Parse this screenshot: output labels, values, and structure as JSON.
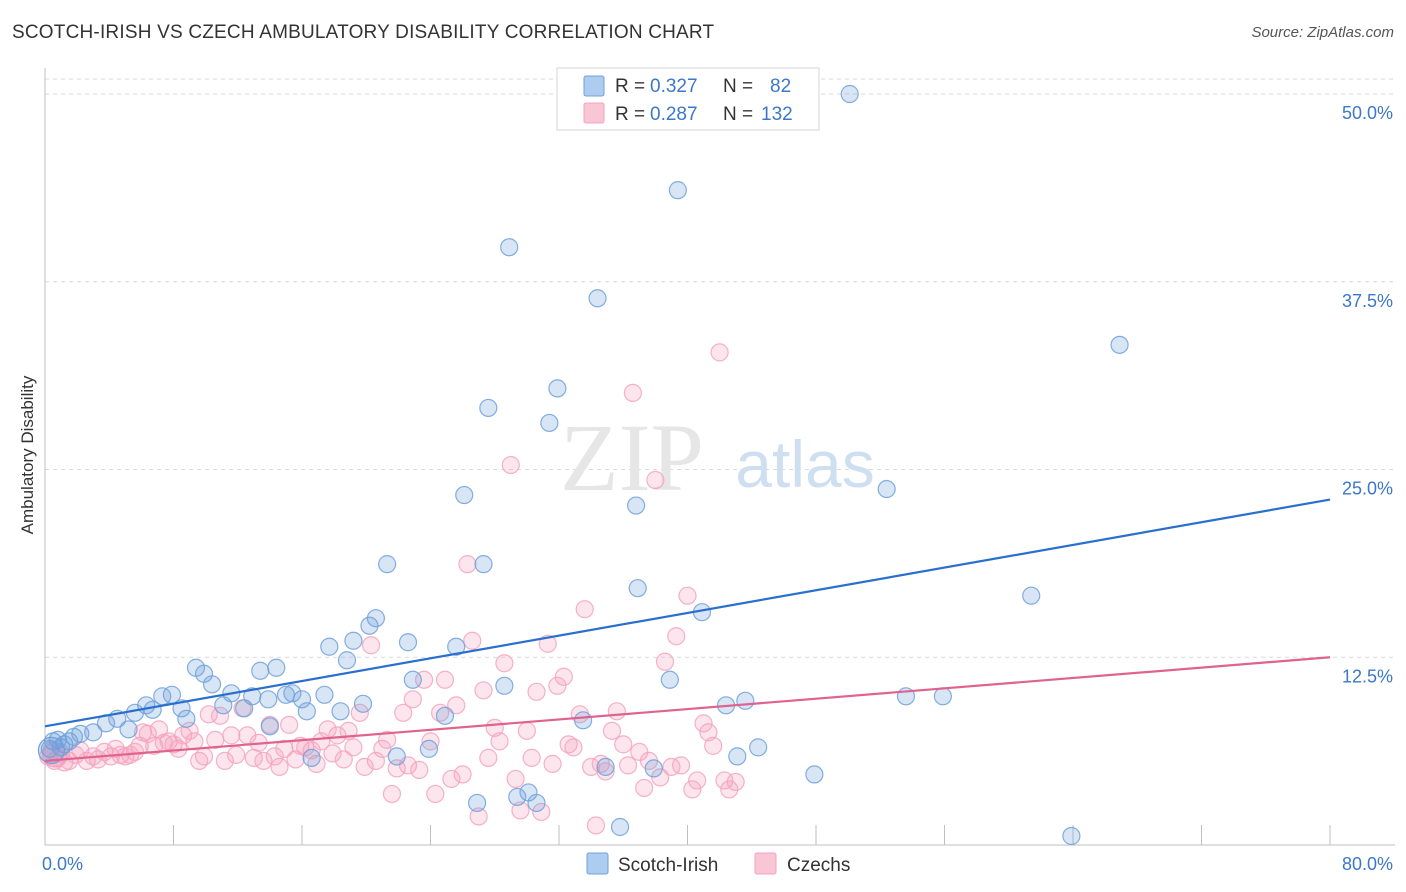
{
  "title": "SCOTCH-IRISH VS CZECH AMBULATORY DISABILITY CORRELATION CHART",
  "source": "Source: ZipAtlas.com",
  "watermark": {
    "zip": "ZIP",
    "atlas": "atlas"
  },
  "colors": {
    "blue": "#6fa0dc",
    "blue_line": "#2a6fcf",
    "pink": "#f4a3bd",
    "pink_line": "#e0628f",
    "axis_text": "#3b78c9",
    "grid": "#d9d9d9"
  },
  "legend": {
    "rows": [
      {
        "r_label": "R =",
        "r_value": "0.327",
        "n_label": "N =",
        "n_value": "82"
      },
      {
        "r_label": "R =",
        "r_value": "0.287",
        "n_label": "N =",
        "n_value": "132"
      }
    ]
  },
  "bottom_legend": [
    "Scotch-Irish",
    "Czechs"
  ],
  "chart_data": {
    "type": "scatter",
    "title": "SCOTCH-IRISH VS CZECH AMBULATORY DISABILITY CORRELATION CHART",
    "xlabel": "",
    "ylabel": "Ambulatory Disability",
    "xlim": [
      0,
      80
    ],
    "ylim": [
      0,
      51
    ],
    "x_tick_labels": [
      "0.0%",
      "80.0%"
    ],
    "y_ticks": [
      12.5,
      25.0,
      37.5,
      50.0
    ],
    "y_tick_labels": [
      "12.5%",
      "25.0%",
      "37.5%",
      "50.0%"
    ],
    "grid": "horizontal dashed",
    "legend_position": "top-center",
    "series": [
      {
        "name": "Scotch-Irish",
        "r": 0.327,
        "n": 82,
        "trend": {
          "x": [
            0,
            80
          ],
          "y": [
            7.9,
            23.0
          ]
        },
        "points": [
          [
            0.3,
            6.4
          ],
          [
            0.5,
            6.9
          ],
          [
            0.8,
            7.0
          ],
          [
            1.0,
            6.5
          ],
          [
            1.2,
            6.7
          ],
          [
            1.5,
            6.9
          ],
          [
            1.8,
            7.2
          ],
          [
            2.2,
            7.4
          ],
          [
            3.0,
            7.5
          ],
          [
            3.8,
            8.1
          ],
          [
            4.5,
            8.4
          ],
          [
            5.2,
            7.7
          ],
          [
            5.6,
            8.8
          ],
          [
            6.3,
            9.3
          ],
          [
            6.7,
            9.0
          ],
          [
            7.3,
            9.9
          ],
          [
            7.9,
            10.0
          ],
          [
            8.5,
            9.1
          ],
          [
            8.8,
            8.4
          ],
          [
            9.4,
            11.8
          ],
          [
            9.9,
            11.4
          ],
          [
            10.4,
            10.7
          ],
          [
            11.1,
            9.3
          ],
          [
            11.6,
            10.1
          ],
          [
            12.4,
            9.1
          ],
          [
            12.9,
            9.9
          ],
          [
            13.4,
            11.6
          ],
          [
            13.9,
            9.7
          ],
          [
            14.0,
            7.9
          ],
          [
            14.4,
            11.8
          ],
          [
            15.0,
            10.0
          ],
          [
            15.4,
            10.1
          ],
          [
            16.0,
            9.7
          ],
          [
            16.3,
            8.9
          ],
          [
            16.6,
            5.8
          ],
          [
            17.4,
            10.0
          ],
          [
            17.7,
            13.2
          ],
          [
            18.4,
            8.9
          ],
          [
            18.8,
            12.3
          ],
          [
            19.2,
            13.6
          ],
          [
            19.8,
            9.4
          ],
          [
            20.2,
            14.6
          ],
          [
            20.6,
            15.1
          ],
          [
            21.3,
            18.7
          ],
          [
            21.9,
            5.9
          ],
          [
            22.6,
            13.5
          ],
          [
            22.9,
            11.0
          ],
          [
            23.9,
            6.4
          ],
          [
            24.9,
            8.6
          ],
          [
            25.6,
            13.2
          ],
          [
            26.1,
            23.3
          ],
          [
            26.9,
            2.8
          ],
          [
            27.3,
            18.7
          ],
          [
            27.6,
            29.1
          ],
          [
            28.6,
            10.6
          ],
          [
            28.9,
            39.8
          ],
          [
            29.4,
            3.2
          ],
          [
            30.1,
            3.5
          ],
          [
            30.6,
            2.8
          ],
          [
            31.4,
            28.1
          ],
          [
            31.9,
            30.4
          ],
          [
            33.5,
            8.3
          ],
          [
            34.4,
            36.4
          ],
          [
            34.9,
            5.2
          ],
          [
            35.8,
            1.2
          ],
          [
            36.8,
            22.6
          ],
          [
            36.9,
            17.1
          ],
          [
            37.9,
            5.1
          ],
          [
            38.9,
            11.0
          ],
          [
            39.4,
            43.6
          ],
          [
            40.9,
            15.5
          ],
          [
            42.4,
            9.3
          ],
          [
            43.1,
            5.9
          ],
          [
            43.6,
            9.6
          ],
          [
            44.4,
            6.5
          ],
          [
            47.9,
            4.7
          ],
          [
            50.1,
            50.0
          ],
          [
            52.4,
            23.7
          ],
          [
            53.6,
            9.9
          ],
          [
            55.9,
            9.9
          ],
          [
            61.4,
            16.6
          ],
          [
            63.9,
            0.6
          ],
          [
            66.9,
            33.3
          ]
        ]
      },
      {
        "name": "Czechs",
        "r": 0.287,
        "n": 132,
        "trend": {
          "x": [
            0,
            80
          ],
          "y": [
            5.6,
            12.5
          ]
        },
        "points": [
          [
            0.2,
            5.9
          ],
          [
            0.4,
            6.3
          ],
          [
            0.6,
            5.6
          ],
          [
            0.8,
            5.8
          ],
          [
            1.0,
            6.1
          ],
          [
            1.2,
            5.5
          ],
          [
            1.5,
            5.6
          ],
          [
            1.9,
            6.0
          ],
          [
            2.2,
            6.3
          ],
          [
            2.6,
            5.6
          ],
          [
            3.0,
            5.9
          ],
          [
            3.3,
            5.7
          ],
          [
            3.7,
            6.2
          ],
          [
            4.1,
            5.9
          ],
          [
            4.4,
            6.4
          ],
          [
            4.7,
            6.0
          ],
          [
            5.0,
            5.9
          ],
          [
            5.3,
            6.0
          ],
          [
            5.6,
            6.2
          ],
          [
            5.9,
            6.6
          ],
          [
            6.1,
            7.5
          ],
          [
            6.4,
            7.4
          ],
          [
            6.8,
            6.6
          ],
          [
            7.1,
            7.7
          ],
          [
            7.4,
            6.8
          ],
          [
            7.7,
            6.9
          ],
          [
            8.0,
            6.7
          ],
          [
            8.3,
            6.4
          ],
          [
            8.6,
            7.3
          ],
          [
            9.0,
            7.6
          ],
          [
            9.3,
            6.9
          ],
          [
            9.6,
            5.6
          ],
          [
            9.9,
            5.9
          ],
          [
            10.2,
            8.7
          ],
          [
            10.6,
            7.0
          ],
          [
            10.9,
            8.6
          ],
          [
            11.2,
            5.6
          ],
          [
            11.6,
            7.3
          ],
          [
            11.9,
            6.0
          ],
          [
            12.3,
            9.1
          ],
          [
            12.6,
            7.3
          ],
          [
            13.0,
            5.8
          ],
          [
            13.3,
            6.8
          ],
          [
            13.6,
            5.6
          ],
          [
            14.0,
            8.0
          ],
          [
            14.3,
            5.9
          ],
          [
            14.6,
            5.2
          ],
          [
            14.9,
            6.4
          ],
          [
            15.2,
            8.0
          ],
          [
            15.6,
            5.7
          ],
          [
            15.9,
            6.6
          ],
          [
            16.2,
            6.5
          ],
          [
            16.6,
            6.3
          ],
          [
            16.9,
            5.4
          ],
          [
            17.2,
            6.9
          ],
          [
            17.6,
            7.7
          ],
          [
            17.9,
            6.1
          ],
          [
            18.2,
            7.3
          ],
          [
            18.6,
            5.7
          ],
          [
            18.9,
            7.6
          ],
          [
            19.2,
            6.5
          ],
          [
            19.6,
            8.8
          ],
          [
            19.9,
            5.2
          ],
          [
            20.3,
            13.3
          ],
          [
            20.6,
            5.6
          ],
          [
            21.0,
            6.4
          ],
          [
            21.3,
            7.0
          ],
          [
            21.6,
            3.4
          ],
          [
            21.9,
            5.1
          ],
          [
            22.3,
            8.8
          ],
          [
            22.6,
            5.3
          ],
          [
            22.9,
            9.7
          ],
          [
            23.3,
            5.0
          ],
          [
            23.6,
            11.0
          ],
          [
            24.0,
            6.9
          ],
          [
            24.3,
            3.4
          ],
          [
            24.6,
            8.8
          ],
          [
            24.9,
            11.0
          ],
          [
            25.3,
            4.4
          ],
          [
            25.6,
            9.3
          ],
          [
            26.0,
            4.7
          ],
          [
            26.3,
            18.7
          ],
          [
            26.6,
            13.6
          ],
          [
            27.0,
            1.9
          ],
          [
            27.3,
            10.3
          ],
          [
            27.6,
            5.8
          ],
          [
            28.0,
            7.8
          ],
          [
            28.3,
            6.9
          ],
          [
            28.6,
            12.1
          ],
          [
            29.0,
            25.3
          ],
          [
            29.3,
            4.4
          ],
          [
            29.6,
            2.3
          ],
          [
            30.0,
            7.6
          ],
          [
            30.3,
            5.8
          ],
          [
            30.6,
            10.2
          ],
          [
            30.9,
            2.2
          ],
          [
            31.3,
            13.4
          ],
          [
            31.6,
            5.4
          ],
          [
            31.9,
            10.6
          ],
          [
            32.3,
            11.2
          ],
          [
            32.6,
            6.7
          ],
          [
            32.9,
            6.5
          ],
          [
            33.3,
            8.7
          ],
          [
            33.6,
            15.7
          ],
          [
            34.0,
            5.2
          ],
          [
            34.3,
            1.3
          ],
          [
            34.6,
            5.4
          ],
          [
            34.9,
            4.9
          ],
          [
            35.3,
            7.6
          ],
          [
            35.6,
            8.9
          ],
          [
            36.0,
            6.7
          ],
          [
            36.3,
            5.3
          ],
          [
            36.6,
            30.1
          ],
          [
            37.0,
            6.2
          ],
          [
            37.3,
            3.8
          ],
          [
            37.6,
            5.6
          ],
          [
            38.0,
            24.3
          ],
          [
            38.3,
            4.5
          ],
          [
            38.6,
            12.2
          ],
          [
            39.0,
            5.2
          ],
          [
            39.3,
            13.9
          ],
          [
            39.6,
            5.3
          ],
          [
            40.0,
            16.6
          ],
          [
            40.3,
            3.7
          ],
          [
            40.6,
            4.3
          ],
          [
            41.0,
            8.1
          ],
          [
            41.3,
            7.5
          ],
          [
            41.6,
            6.6
          ],
          [
            42.0,
            32.8
          ],
          [
            42.3,
            4.3
          ],
          [
            42.6,
            3.7
          ],
          [
            43.0,
            4.2
          ]
        ]
      }
    ]
  }
}
